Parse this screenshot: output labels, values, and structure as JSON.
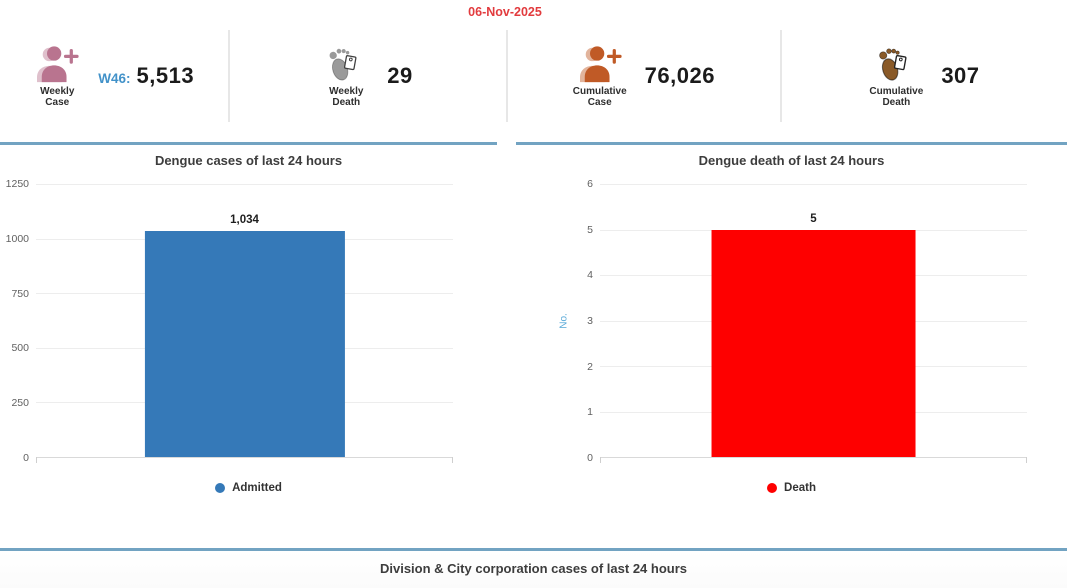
{
  "date": "06-Nov-2025",
  "colors": {
    "date_text": "#e23b3e",
    "panel_border": "#72a3c2",
    "week_label": "#4292c9",
    "weekly_case_icon": "#b9748f",
    "weekly_death_icon": "#9a9a9a",
    "cumulative_case_icon": "#c05a26",
    "cumulative_death_icon": "#8a5a28"
  },
  "stats": {
    "weekly_case": {
      "label1": "Weekly",
      "label2": "Case",
      "prefix": "W46:",
      "value": "5,513",
      "icon": "person-plus-icon"
    },
    "weekly_death": {
      "label1": "Weekly",
      "label2": "Death",
      "value": "29",
      "icon": "foot-tag-icon"
    },
    "cumulative_case": {
      "label1": "Cumulative",
      "label2": "Case",
      "value": "76,026",
      "icon": "person-plus-icon"
    },
    "cumulative_death": {
      "label1": "Cumulative",
      "label2": "Death",
      "value": "307",
      "icon": "foot-tag-icon"
    }
  },
  "chart_data": [
    {
      "type": "bar",
      "title": "Dengue cases of last 24 hours",
      "categories": [
        "Admitted"
      ],
      "values": [
        1034
      ],
      "value_labels": [
        "1,034"
      ],
      "xlabel": "",
      "ylabel": "",
      "ylim": [
        0,
        1250
      ],
      "yticks": [
        1250,
        1000,
        750,
        500,
        250,
        0
      ],
      "grid": true,
      "bar_color": "#3579b8",
      "legend": [
        {
          "label": "Admitted",
          "color": "#3579b8"
        }
      ],
      "legend_position": "bottom"
    },
    {
      "type": "bar",
      "title": "Dengue death of last 24 hours",
      "categories": [
        "Death"
      ],
      "values": [
        5
      ],
      "value_labels": [
        "5"
      ],
      "xlabel": "",
      "ylabel": "No.",
      "ylim": [
        0,
        6
      ],
      "yticks": [
        6,
        5,
        4,
        3,
        2,
        1,
        0
      ],
      "grid": true,
      "bar_color": "#fe0000",
      "legend": [
        {
          "label": "Death",
          "color": "#fe0000"
        }
      ],
      "legend_position": "bottom"
    }
  ],
  "footer": {
    "title": "Division & City corporation cases of last 24 hours"
  }
}
